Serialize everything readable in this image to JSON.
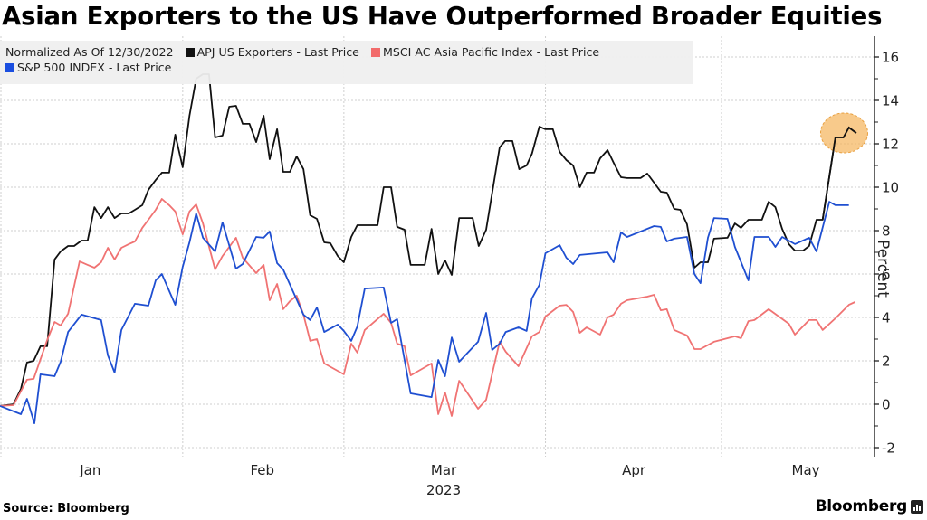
{
  "chart_data": {
    "type": "line",
    "title": "Asian Exporters to the US Have Outperformed Broader Equities",
    "legend_header": "Normalized As Of 12/30/2022",
    "xlabel": "2023",
    "ylabel": "Percent",
    "ylim": [
      -2.4,
      16.6
    ],
    "xlim": [
      0,
      129.7
    ],
    "yticks": [
      -2,
      0,
      2,
      4,
      6,
      8,
      10,
      12,
      14,
      16
    ],
    "x_unit": "trading days since 12/30/2022 (approx.)",
    "month_ticks": [
      {
        "label": "Jan",
        "center": 13.4
      },
      {
        "label": "Feb",
        "center": 38.9,
        "boundary": 27.1
      },
      {
        "label": "Mar",
        "center": 65.8,
        "boundary": 51.0
      },
      {
        "label": "Apr",
        "center": 94.0,
        "boundary": 80.9
      },
      {
        "label": "May",
        "center": 119.5,
        "boundary": 107.0
      }
    ],
    "grid": true,
    "legend_position": "top-left",
    "annotation": {
      "type": "highlight-circle",
      "x": 125.2,
      "y": 12.5,
      "color": "#f5b35a"
    },
    "series": [
      {
        "name": "APJ US Exporters - Last Price",
        "color": "#111111",
        "points": [
          [
            0,
            -0.08
          ],
          [
            2,
            0
          ],
          [
            3.1,
            0.71
          ],
          [
            4,
            1.92
          ],
          [
            5,
            2.0
          ],
          [
            6,
            2.67
          ],
          [
            7,
            2.67
          ],
          [
            8.1,
            6.67
          ],
          [
            9,
            7.04
          ],
          [
            10.1,
            7.29
          ],
          [
            11,
            7.29
          ],
          [
            12.1,
            7.54
          ],
          [
            13,
            7.54
          ],
          [
            14,
            9.08
          ],
          [
            15,
            8.58
          ],
          [
            16,
            9.08
          ],
          [
            17,
            8.58
          ],
          [
            18,
            8.79
          ],
          [
            19.1,
            8.79
          ],
          [
            20,
            8.96
          ],
          [
            21.1,
            9.17
          ],
          [
            22,
            9.88
          ],
          [
            23.1,
            10.33
          ],
          [
            24,
            10.67
          ],
          [
            25.1,
            10.67
          ],
          [
            26,
            12.42
          ],
          [
            27.1,
            10.92
          ],
          [
            28.1,
            13.29
          ],
          [
            29.1,
            15.0
          ],
          [
            30.1,
            15.21
          ],
          [
            31,
            15.21
          ],
          [
            31.9,
            12.29
          ],
          [
            33,
            12.38
          ],
          [
            34,
            13.71
          ],
          [
            35,
            13.75
          ],
          [
            36,
            12.92
          ],
          [
            37,
            12.92
          ],
          [
            38,
            12.08
          ],
          [
            39.1,
            13.29
          ],
          [
            40,
            11.29
          ],
          [
            41.1,
            12.67
          ],
          [
            42,
            10.71
          ],
          [
            43,
            10.71
          ],
          [
            44,
            11.42
          ],
          [
            45,
            10.83
          ],
          [
            46,
            8.71
          ],
          [
            47,
            8.54
          ],
          [
            48.1,
            7.46
          ],
          [
            49,
            7.42
          ],
          [
            50.1,
            6.83
          ],
          [
            51,
            6.54
          ],
          [
            52.1,
            7.71
          ],
          [
            53,
            8.25
          ],
          [
            56,
            8.25
          ],
          [
            56.9,
            10.0
          ],
          [
            58,
            10.0
          ],
          [
            58.9,
            8.17
          ],
          [
            60,
            8.04
          ],
          [
            60.9,
            6.42
          ],
          [
            63,
            6.42
          ],
          [
            64,
            8.08
          ],
          [
            65,
            6.0
          ],
          [
            66,
            6.63
          ],
          [
            67,
            5.96
          ],
          [
            68.1,
            8.58
          ],
          [
            70.1,
            8.58
          ],
          [
            71,
            7.29
          ],
          [
            72.1,
            8.04
          ],
          [
            74.1,
            11.83
          ],
          [
            74.9,
            12.13
          ],
          [
            76,
            12.13
          ],
          [
            77,
            10.83
          ],
          [
            78.1,
            11.0
          ],
          [
            78.9,
            11.54
          ],
          [
            80,
            12.79
          ],
          [
            80.9,
            12.67
          ],
          [
            82,
            12.67
          ],
          [
            83,
            11.63
          ],
          [
            84,
            11.25
          ],
          [
            85,
            11.0
          ],
          [
            86,
            10.0
          ],
          [
            87,
            10.67
          ],
          [
            88.1,
            10.67
          ],
          [
            89,
            11.33
          ],
          [
            90.1,
            11.71
          ],
          [
            91,
            11.13
          ],
          [
            92.1,
            10.46
          ],
          [
            93,
            10.42
          ],
          [
            95,
            10.42
          ],
          [
            96,
            10.63
          ],
          [
            97,
            10.21
          ],
          [
            98,
            9.79
          ],
          [
            98.9,
            9.75
          ],
          [
            100,
            9.0
          ],
          [
            100.9,
            8.96
          ],
          [
            101.9,
            8.29
          ],
          [
            103,
            6.29
          ],
          [
            103.9,
            6.54
          ],
          [
            105,
            6.54
          ],
          [
            105.9,
            7.63
          ],
          [
            107.9,
            7.67
          ],
          [
            109,
            8.33
          ],
          [
            109.9,
            8.13
          ],
          [
            111,
            8.5
          ],
          [
            113,
            8.5
          ],
          [
            114,
            9.33
          ],
          [
            115,
            9.08
          ],
          [
            116,
            8.08
          ],
          [
            117,
            7.38
          ],
          [
            117.9,
            7.08
          ],
          [
            119.1,
            7.08
          ],
          [
            120,
            7.29
          ],
          [
            121.1,
            8.5
          ],
          [
            122,
            8.5
          ],
          [
            123.9,
            12.29
          ],
          [
            125.1,
            12.29
          ],
          [
            125.9,
            12.75
          ],
          [
            127,
            12.5
          ]
        ]
      },
      {
        "name": "MSCI AC Asia Pacific Index - Last Price",
        "color": "#f07373",
        "points": [
          [
            0,
            -0.08
          ],
          [
            2,
            -0.04
          ],
          [
            4,
            1.13
          ],
          [
            5,
            1.17
          ],
          [
            7,
            2.96
          ],
          [
            8.1,
            3.79
          ],
          [
            9,
            3.63
          ],
          [
            10.1,
            4.17
          ],
          [
            11.8,
            6.58
          ],
          [
            13,
            6.42
          ],
          [
            14,
            6.29
          ],
          [
            15,
            6.54
          ],
          [
            16,
            7.21
          ],
          [
            17,
            6.67
          ],
          [
            18,
            7.21
          ],
          [
            19.1,
            7.38
          ],
          [
            20,
            7.5
          ],
          [
            21.1,
            8.13
          ],
          [
            22,
            8.5
          ],
          [
            23.1,
            8.96
          ],
          [
            24,
            9.46
          ],
          [
            25.1,
            9.17
          ],
          [
            26,
            8.88
          ],
          [
            27.1,
            7.83
          ],
          [
            28.1,
            8.88
          ],
          [
            29.1,
            9.21
          ],
          [
            30.1,
            8.33
          ],
          [
            31.9,
            6.21
          ],
          [
            33,
            6.83
          ],
          [
            35,
            7.67
          ],
          [
            36,
            6.75
          ],
          [
            38,
            6.04
          ],
          [
            39.1,
            6.42
          ],
          [
            40,
            4.79
          ],
          [
            41.1,
            5.54
          ],
          [
            42,
            4.38
          ],
          [
            43,
            4.75
          ],
          [
            44,
            5.0
          ],
          [
            45,
            4.13
          ],
          [
            46,
            2.92
          ],
          [
            47,
            3.0
          ],
          [
            48.1,
            1.88
          ],
          [
            51,
            1.38
          ],
          [
            52.1,
            2.79
          ],
          [
            53,
            2.38
          ],
          [
            54.1,
            3.42
          ],
          [
            56.9,
            4.17
          ],
          [
            58,
            3.75
          ],
          [
            58.9,
            2.79
          ],
          [
            60,
            2.67
          ],
          [
            60.9,
            1.33
          ],
          [
            64,
            1.88
          ],
          [
            65,
            -0.46
          ],
          [
            66,
            0.54
          ],
          [
            67,
            -0.54
          ],
          [
            68.1,
            1.08
          ],
          [
            70.9,
            -0.21
          ],
          [
            72.1,
            0.21
          ],
          [
            74.1,
            2.88
          ],
          [
            75,
            2.42
          ],
          [
            76.9,
            1.75
          ],
          [
            78.9,
            3.13
          ],
          [
            80,
            3.33
          ],
          [
            80.9,
            4.04
          ],
          [
            83,
            4.54
          ],
          [
            84,
            4.58
          ],
          [
            85,
            4.25
          ],
          [
            86,
            3.29
          ],
          [
            87,
            3.54
          ],
          [
            89,
            3.21
          ],
          [
            90.1,
            4.0
          ],
          [
            91,
            4.13
          ],
          [
            92.1,
            4.63
          ],
          [
            93,
            4.79
          ],
          [
            96,
            4.96
          ],
          [
            97,
            5.04
          ],
          [
            98,
            4.33
          ],
          [
            98.9,
            4.38
          ],
          [
            100,
            3.42
          ],
          [
            101.9,
            3.17
          ],
          [
            103,
            2.54
          ],
          [
            103.9,
            2.54
          ],
          [
            105.9,
            2.88
          ],
          [
            109,
            3.13
          ],
          [
            109.9,
            3.04
          ],
          [
            111,
            3.83
          ],
          [
            111.9,
            3.88
          ],
          [
            114,
            4.38
          ],
          [
            117,
            3.71
          ],
          [
            117.9,
            3.21
          ],
          [
            120,
            3.88
          ],
          [
            121.1,
            3.88
          ],
          [
            122,
            3.42
          ],
          [
            123.9,
            3.96
          ],
          [
            125.9,
            4.58
          ],
          [
            126.8,
            4.71
          ]
        ]
      },
      {
        "name": "S&P 500 INDEX - Last Price",
        "color": "#1f4fd1",
        "points": [
          [
            0,
            -0.08
          ],
          [
            3.1,
            -0.46
          ],
          [
            4,
            0.25
          ],
          [
            5.1,
            -0.88
          ],
          [
            6,
            1.38
          ],
          [
            8.1,
            1.29
          ],
          [
            9,
            1.96
          ],
          [
            10.1,
            3.33
          ],
          [
            12.1,
            4.13
          ],
          [
            15,
            3.88
          ],
          [
            16,
            2.25
          ],
          [
            17,
            1.46
          ],
          [
            18,
            3.42
          ],
          [
            20,
            4.63
          ],
          [
            22,
            4.54
          ],
          [
            23.1,
            5.71
          ],
          [
            24,
            6.0
          ],
          [
            26,
            4.58
          ],
          [
            27.1,
            6.33
          ],
          [
            28.1,
            7.46
          ],
          [
            29.1,
            8.79
          ],
          [
            30.1,
            7.67
          ],
          [
            31.9,
            7.04
          ],
          [
            33,
            8.38
          ],
          [
            35,
            6.25
          ],
          [
            36,
            6.46
          ],
          [
            38,
            7.71
          ],
          [
            39.1,
            7.67
          ],
          [
            40,
            7.96
          ],
          [
            41.1,
            6.5
          ],
          [
            42,
            6.21
          ],
          [
            45,
            4.13
          ],
          [
            46,
            3.88
          ],
          [
            47,
            4.46
          ],
          [
            48.1,
            3.33
          ],
          [
            50.1,
            3.67
          ],
          [
            51,
            3.38
          ],
          [
            52.1,
            2.92
          ],
          [
            53,
            3.58
          ],
          [
            54.1,
            5.33
          ],
          [
            56.9,
            5.38
          ],
          [
            58,
            3.75
          ],
          [
            58.9,
            3.92
          ],
          [
            60.9,
            0.5
          ],
          [
            64,
            0.33
          ],
          [
            65,
            2.04
          ],
          [
            66,
            1.29
          ],
          [
            67,
            3.08
          ],
          [
            68.1,
            1.96
          ],
          [
            70.9,
            2.88
          ],
          [
            72.1,
            4.21
          ],
          [
            73,
            2.5
          ],
          [
            74.1,
            2.79
          ],
          [
            75,
            3.33
          ],
          [
            76.9,
            3.54
          ],
          [
            78.1,
            3.38
          ],
          [
            78.9,
            4.88
          ],
          [
            80,
            5.5
          ],
          [
            80.9,
            6.96
          ],
          [
            83,
            7.33
          ],
          [
            84,
            6.75
          ],
          [
            85,
            6.46
          ],
          [
            86,
            6.88
          ],
          [
            90.1,
            7.0
          ],
          [
            91,
            6.54
          ],
          [
            92.1,
            7.92
          ],
          [
            93,
            7.71
          ],
          [
            97,
            8.21
          ],
          [
            98,
            8.17
          ],
          [
            98.9,
            7.5
          ],
          [
            100,
            7.63
          ],
          [
            101.9,
            7.71
          ],
          [
            103,
            6.0
          ],
          [
            103.9,
            5.58
          ],
          [
            105,
            7.67
          ],
          [
            105.9,
            8.58
          ],
          [
            107.9,
            8.54
          ],
          [
            109,
            7.25
          ],
          [
            111,
            5.71
          ],
          [
            111.9,
            7.71
          ],
          [
            114,
            7.71
          ],
          [
            115,
            7.25
          ],
          [
            116,
            7.71
          ],
          [
            117.9,
            7.38
          ],
          [
            120,
            7.67
          ],
          [
            121.1,
            7.04
          ],
          [
            123,
            9.33
          ],
          [
            123.9,
            9.17
          ],
          [
            125.9,
            9.17
          ]
        ]
      }
    ]
  },
  "footer": {
    "source": "Source: Bloomberg",
    "brand": "Bloomberg"
  }
}
